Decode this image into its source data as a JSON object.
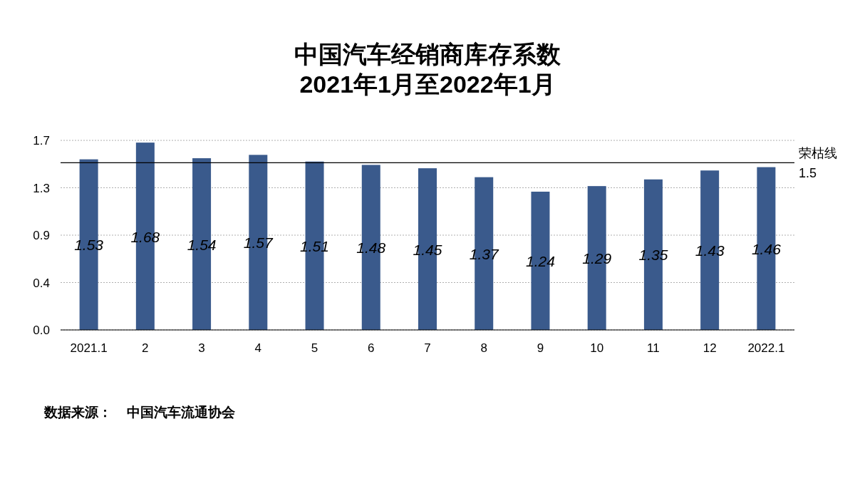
{
  "chart_data": {
    "type": "bar",
    "title": "中国汽车经销商库存系数\n2021年1月至2022年1月",
    "categories": [
      "2021.1",
      "2",
      "3",
      "4",
      "5",
      "6",
      "7",
      "8",
      "9",
      "10",
      "11",
      "12",
      "2022.1"
    ],
    "values": [
      1.53,
      1.68,
      1.54,
      1.57,
      1.51,
      1.48,
      1.45,
      1.37,
      1.24,
      1.29,
      1.35,
      1.43,
      1.46
    ],
    "color": "#3a5a8c",
    "ylim": [
      0,
      1.7
    ],
    "yticks": [
      {
        "value": 0,
        "label": "0.0"
      },
      {
        "value": 0.425,
        "label": "0.4"
      },
      {
        "value": 0.85,
        "label": "0.9"
      },
      {
        "value": 1.275,
        "label": "1.3"
      },
      {
        "value": 1.7,
        "label": "1.7"
      }
    ],
    "grid": "y",
    "data_labels": true,
    "ref_lines": [
      {
        "axis": "y",
        "value": 1.5,
        "label": "荣枯线\n1.5",
        "color": "#000000"
      }
    ],
    "annotations": [
      "数据来源：    中国汽车流通协会"
    ]
  }
}
